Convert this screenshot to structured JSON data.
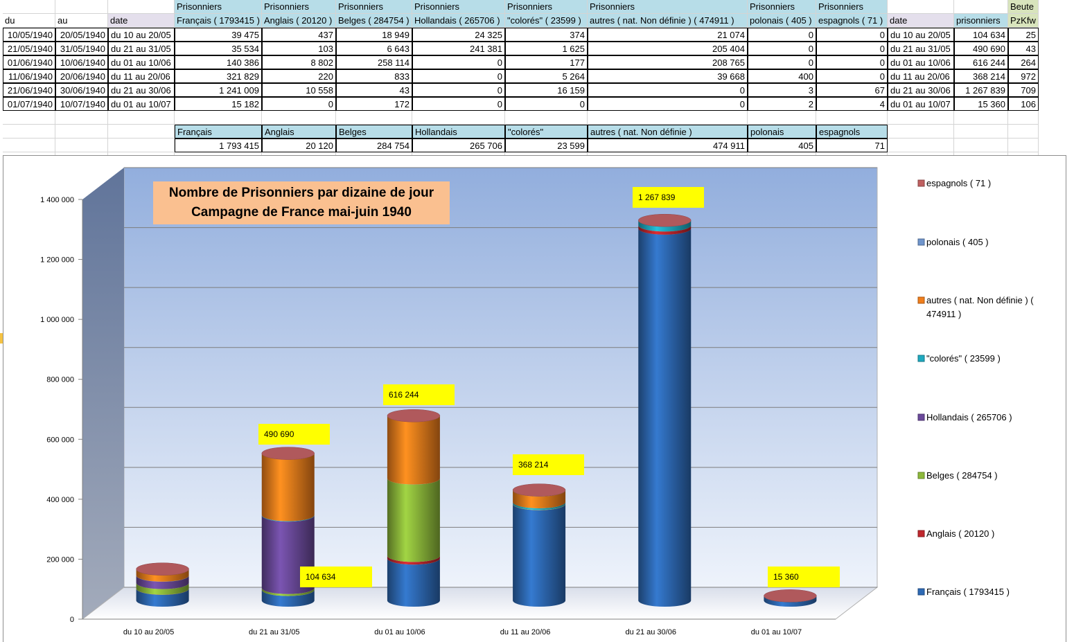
{
  "table": {
    "row0": [
      "",
      "",
      "",
      "Prisonniers",
      "Prisonniers",
      "Prisonniers",
      "Prisonniers",
      "Prisonniers",
      "Prisonniers",
      "Prisonniers",
      "Prisonniers",
      "",
      "",
      "Beute"
    ],
    "row1": [
      "du",
      "au",
      "date",
      "Français ( 1793415 )",
      "Anglais ( 20120 )",
      "Belges ( 284754 )",
      "Hollandais ( 265706 )",
      "\"colorés\" ( 23599 )",
      "autres ( nat. Non définie ) ( 474911 )",
      "polonais ( 405 )",
      "espagnols ( 71 )",
      "date",
      "prisonniers",
      "PzKfw"
    ],
    "rows": [
      [
        "10/05/1940",
        "20/05/1940",
        "du 10 au 20/05",
        "39 475",
        "437",
        "18 949",
        "24 325",
        "374",
        "21 074",
        "0",
        "0",
        "du 10 au 20/05",
        "104 634",
        "25"
      ],
      [
        "21/05/1940",
        "31/05/1940",
        "du 21 au 31/05",
        "35 534",
        "103",
        "6 643",
        "241 381",
        "1 625",
        "205 404",
        "0",
        "0",
        "du 21 au 31/05",
        "490 690",
        "43"
      ],
      [
        "01/06/1940",
        "10/06/1940",
        "du 01 au 10/06",
        "140 386",
        "8 802",
        "258 114",
        "0",
        "177",
        "208 765",
        "0",
        "0",
        "du 01 au 10/06",
        "616 244",
        "264"
      ],
      [
        "11/06/1940",
        "20/06/1940",
        "du 11 au 20/06",
        "321 829",
        "220",
        "833",
        "0",
        "5 264",
        "39 668",
        "400",
        "0",
        "du 11 au 20/06",
        "368 214",
        "972"
      ],
      [
        "21/06/1940",
        "30/06/1940",
        "du 21 au 30/06",
        "1 241 009",
        "10 558",
        "43",
        "0",
        "16 159",
        "0",
        "3",
        "67",
        "du 21 au 30/06",
        "1 267 839",
        "709"
      ],
      [
        "01/07/1940",
        "10/07/1940",
        "du 01 au 10/07",
        "15 182",
        "0",
        "172",
        "0",
        "0",
        "0",
        "2",
        "4",
        "du 01 au 10/07",
        "15 360",
        "106"
      ]
    ],
    "totals_header": [
      "Français",
      "Anglais",
      "Belges",
      "Hollandais",
      "\"colorés\"",
      "autres ( nat. Non définie )",
      "polonais",
      "espagnols"
    ],
    "totals_values": [
      "1 793 415",
      "20 120",
      "284 754",
      "265 706",
      "23 599",
      "474 911",
      "405",
      "71"
    ]
  },
  "chart_data": {
    "type": "bar",
    "stacked": true,
    "style": "3d-cylinder",
    "title": "Nombre de Prisonniers par dizaine de jour\nCampagne de France mai-juin 1940",
    "categories": [
      "du 10 au 20/05",
      "du 21 au 31/05",
      "du 01 au 10/06",
      "du 11 au 20/06",
      "du 21 au 30/06",
      "du 01 au 10/07"
    ],
    "ylim": [
      0,
      1400000
    ],
    "yticks": [
      0,
      200000,
      400000,
      600000,
      800000,
      1000000,
      1200000,
      1400000
    ],
    "ytick_labels": [
      "0",
      "200 000",
      "400 000",
      "600 000",
      "800 000",
      "1 000 000",
      "1 200 000",
      "1 400 000"
    ],
    "grid": true,
    "legend_position": "right",
    "series": [
      {
        "name": "Français ( 1793415 )",
        "color": "#2e6ab5",
        "values": [
          39475,
          35534,
          140386,
          321829,
          1241009,
          15182
        ]
      },
      {
        "name": "Anglais ( 20120 )",
        "color": "#c0272d",
        "values": [
          437,
          103,
          8802,
          220,
          10558,
          0
        ]
      },
      {
        "name": "Belges ( 284754 )",
        "color": "#8db93b",
        "values": [
          18949,
          6643,
          258114,
          833,
          43,
          172
        ]
      },
      {
        "name": "Hollandais ( 265706 )",
        "color": "#6b4a9b",
        "values": [
          24325,
          241381,
          0,
          0,
          0,
          0
        ]
      },
      {
        "name": "\"colorés\" ( 23599 )",
        "color": "#1fa9bf",
        "values": [
          374,
          1625,
          177,
          5264,
          16159,
          0
        ]
      },
      {
        "name": "autres ( nat. Non définie ) ( 474911 )",
        "color": "#f07e1c",
        "values": [
          21074,
          205404,
          208765,
          39668,
          0,
          0
        ]
      },
      {
        "name": "polonais ( 405 )",
        "color": "#6f95cc",
        "values": [
          0,
          0,
          0,
          400,
          3,
          2
        ]
      },
      {
        "name": "espagnols ( 71 )",
        "color": "#c06060",
        "values": [
          0,
          0,
          0,
          0,
          67,
          4
        ]
      }
    ],
    "legend_order": [
      "espagnols ( 71 )",
      "polonais ( 405 )",
      "autres ( nat. Non définie ) (\n474911 )",
      "\"colorés\" ( 23599 )",
      "Hollandais ( 265706 )",
      "Belges ( 284754 )",
      "Anglais ( 20120 )",
      "Français ( 1793415 )"
    ],
    "data_labels": [
      "1 267 839",
      "616 244",
      "490 690",
      "368 214",
      "104 634",
      "15 360"
    ]
  }
}
